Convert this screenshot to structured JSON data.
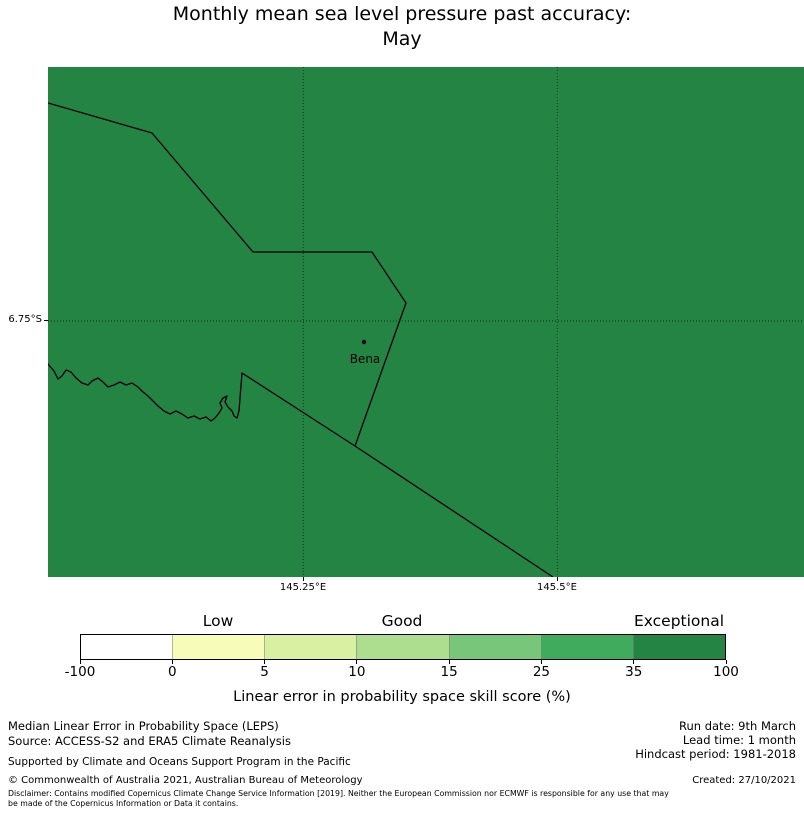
{
  "title": {
    "line1": "Monthly mean sea level pressure past accuracy:",
    "line2": "May"
  },
  "map": {
    "fill_color": "#238443",
    "y_tick_label": "6.75°S",
    "x_tick_labels": [
      "145.25°E",
      "145.5°E"
    ],
    "place": {
      "name": "Bena"
    }
  },
  "colorbar": {
    "category_labels": [
      "Low",
      "Good",
      "Exceptional"
    ],
    "tick_labels": [
      "-100",
      "0",
      "5",
      "10",
      "15",
      "25",
      "35",
      "100"
    ],
    "segment_colors": [
      "#ffffff",
      "#f7fcb9",
      "#d9f0a3",
      "#addd8e",
      "#78c679",
      "#41ab5d",
      "#238443"
    ],
    "xlabel": "Linear error in probability space skill score (%)"
  },
  "footer": {
    "left_line1": "Median Linear Error in Probability Space (LEPS)",
    "left_line2": "Source: ACCESS-S2 and ERA5 Climate Reanalysis",
    "supported": "Supported by Climate and Oceans Support Program in the Pacific",
    "run_date": "Run date: 9th March",
    "lead_time": "Lead time: 1 month",
    "hindcast": "Hindcast period: 1981-2018",
    "copyright": "© Commonwealth of Australia 2021, Australian Bureau of Meteorology",
    "created": "Created: 27/10/2021",
    "disclaimer_line1": "Disclaimer: Contains modified Copernicus Climate Change Service Information [2019]. Neither the European Commission nor ECMWF is responsible for any use that may",
    "disclaimer_line2": "be made of the Copernicus Information or Data it contains."
  }
}
